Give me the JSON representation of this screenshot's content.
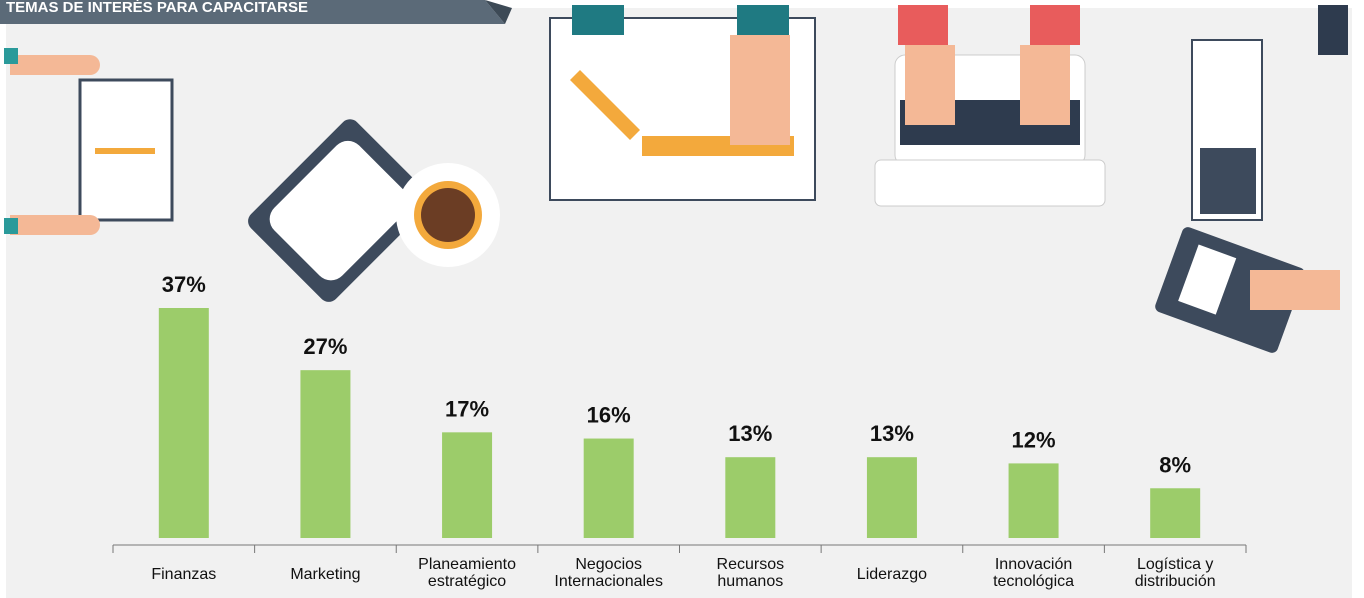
{
  "chart_data": {
    "type": "bar",
    "title": "TEMAS DE INTERÉS PARA CAPACITARSE",
    "categories": [
      "Finanzas",
      "Marketing",
      "Planeamiento estratégico",
      "Negocios Internacionales",
      "Recursos humanos",
      "Liderazgo",
      "Innovación tecnológica",
      "Logística y distribución"
    ],
    "values": [
      37,
      27,
      17,
      16,
      13,
      13,
      12,
      8
    ],
    "value_labels": [
      "37%",
      "27%",
      "17%",
      "16%",
      "13%",
      "13%",
      "12%",
      "8%"
    ],
    "color": "#9ccc6a"
  }
}
